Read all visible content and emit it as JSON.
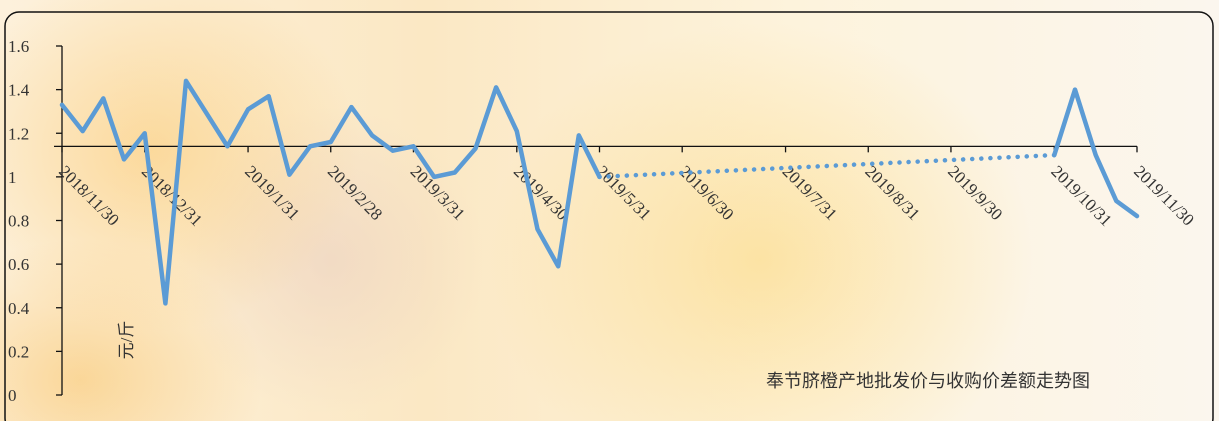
{
  "chart_data": {
    "type": "line",
    "title": "奉节脐橙产地批发价与收购价差额走势图",
    "y_label": "元/斤",
    "categories": [
      "2018/11/30",
      null,
      null,
      null,
      "2018/12/31",
      null,
      null,
      null,
      null,
      "2019/1/31",
      null,
      null,
      null,
      "2019/2/28",
      null,
      null,
      null,
      "2019/3/31",
      null,
      null,
      null,
      null,
      "2019/4/30",
      null,
      null,
      null,
      "2019/5/31",
      null,
      null,
      null,
      "2019/6/30",
      null,
      null,
      null,
      null,
      "2019/7/31",
      null,
      null,
      null,
      "2019/8/31",
      null,
      null,
      null,
      "2019/9/30",
      null,
      null,
      null,
      null,
      "2019/10/31",
      null,
      null,
      null,
      "2019/11/30"
    ],
    "values": [
      1.33,
      1.21,
      1.36,
      1.08,
      1.2,
      0.42,
      1.44,
      1.29,
      1.14,
      1.31,
      1.37,
      1.01,
      1.14,
      1.16,
      1.32,
      1.19,
      1.12,
      1.14,
      1.0,
      1.02,
      1.13,
      1.41,
      1.21,
      0.76,
      0.59,
      1.19,
      1.0,
      null,
      null,
      null,
      null,
      null,
      null,
      null,
      null,
      null,
      null,
      null,
      null,
      null,
      null,
      null,
      null,
      null,
      null,
      null,
      null,
      null,
      1.1,
      1.4,
      1.1,
      0.89,
      0.82
    ],
    "color": "#5b9bd5",
    "gap_style": "dotted",
    "x_axis_at": 1.14,
    "ylim": [
      0,
      1.6
    ],
    "yticks": [
      0,
      0.2,
      0.4,
      0.6,
      0.8,
      1,
      1.2,
      1.4,
      1.6
    ],
    "grid": false
  }
}
